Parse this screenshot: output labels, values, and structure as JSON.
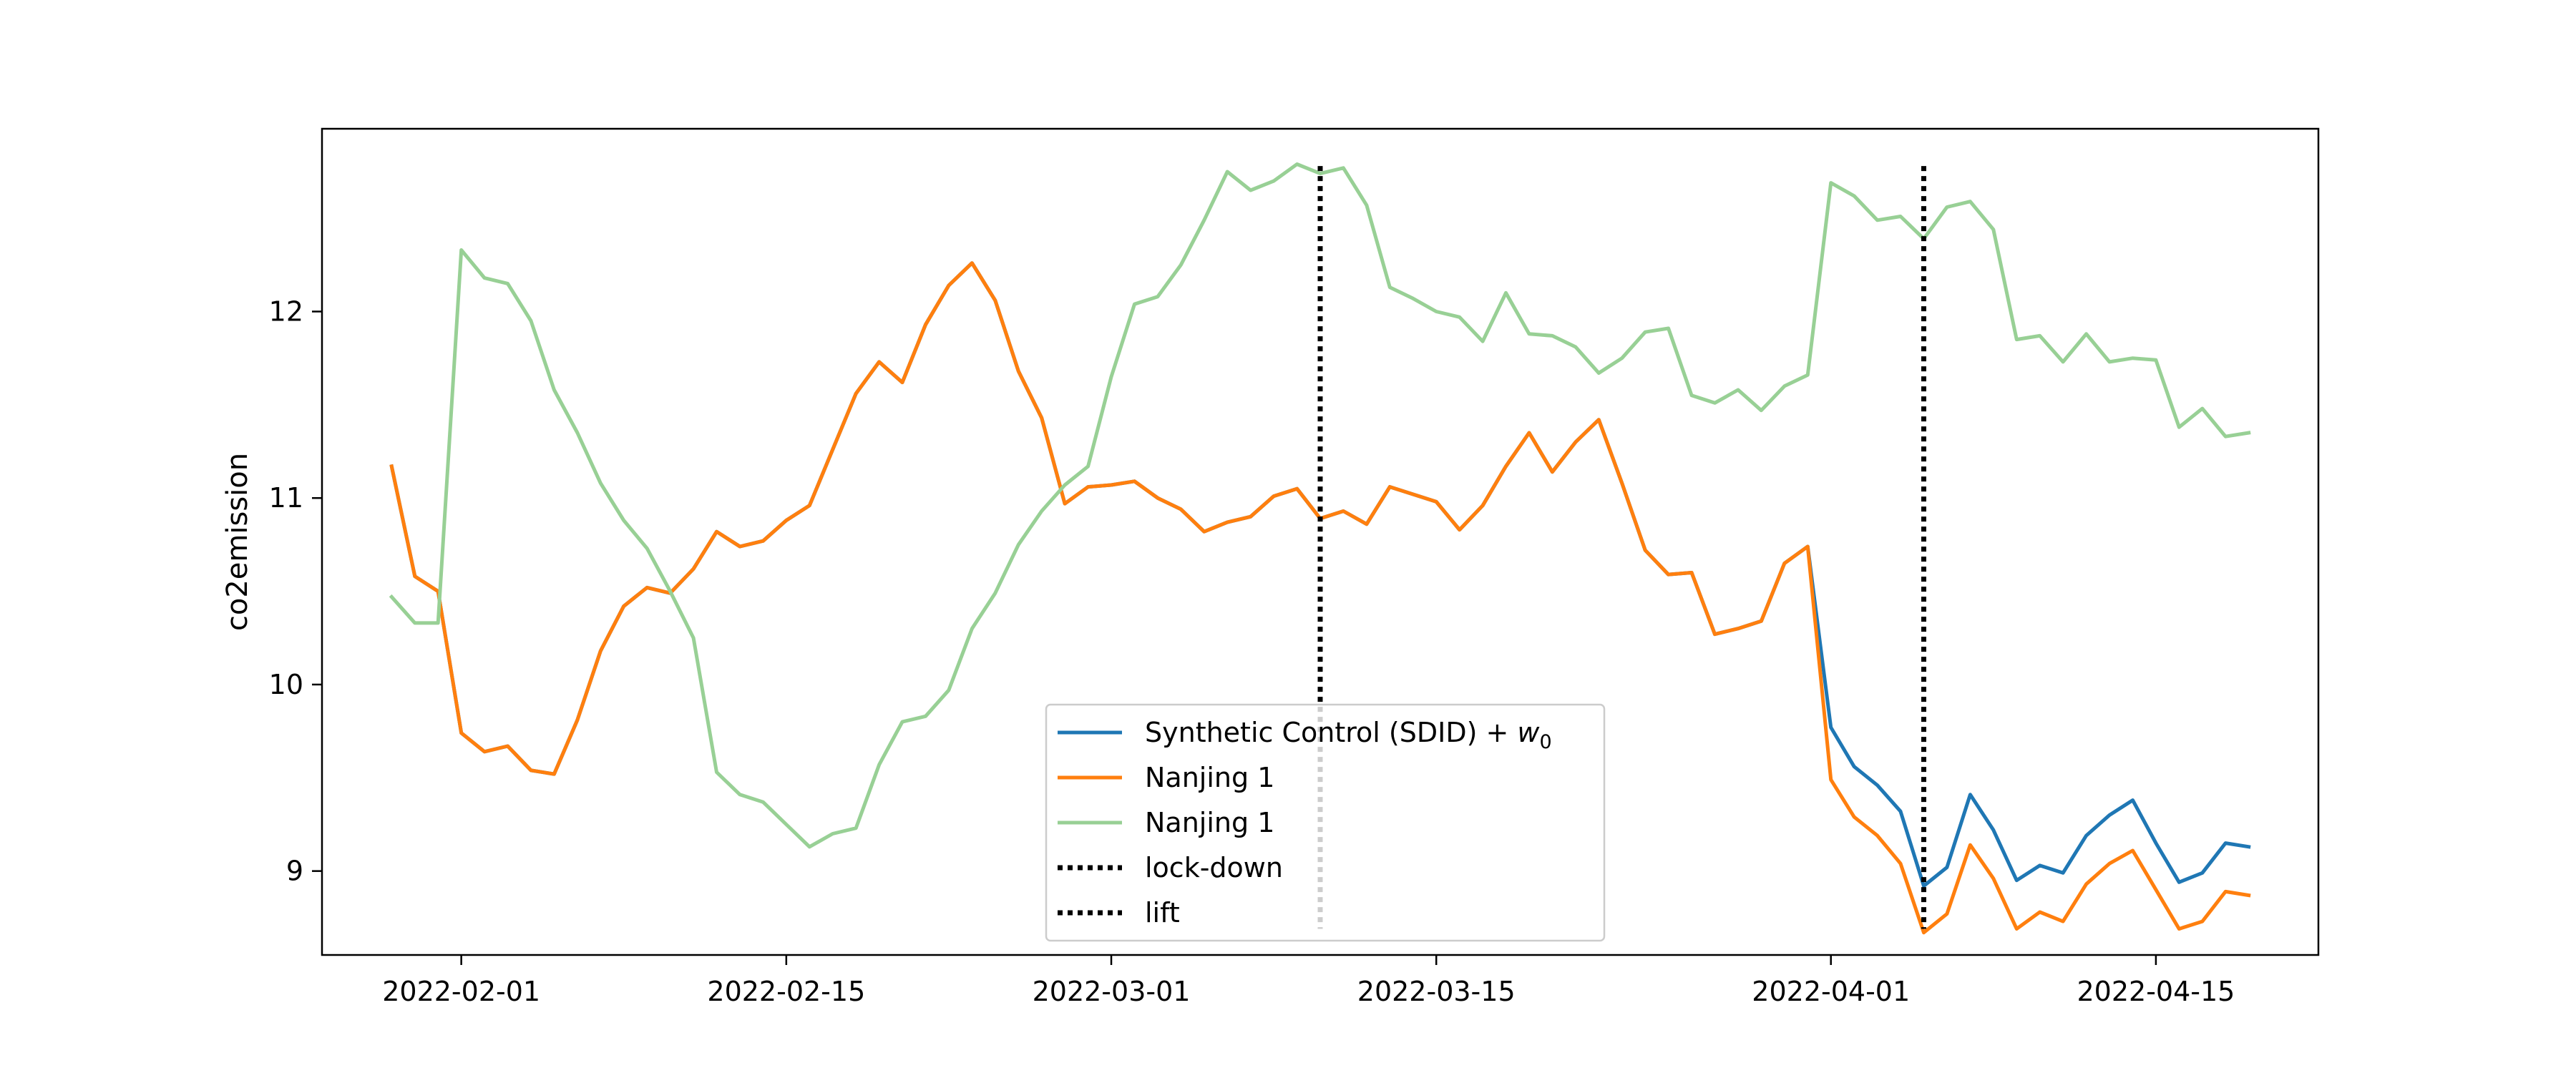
{
  "chart_data": {
    "type": "line",
    "xlabel": "",
    "ylabel": "co2emission",
    "x_start": "2022-01-29",
    "xlim": [
      "2022-01-26",
      "2022-04-22"
    ],
    "ylim": [
      8.55,
      12.98
    ],
    "x_ticks": [
      "2022-02-01",
      "2022-02-15",
      "2022-03-01",
      "2022-03-15",
      "2022-04-01",
      "2022-04-15"
    ],
    "y_ticks": [
      9,
      10,
      11,
      12
    ],
    "grid": false,
    "legend_position": "lower-center",
    "series": [
      {
        "name": "Synthetic Control (SDID) + w",
        "name_subscript": "0",
        "color": "#1f77b4",
        "values": [
          11.17,
          10.58,
          10.5,
          9.74,
          9.64,
          9.67,
          9.54,
          9.52,
          9.81,
          10.18,
          10.42,
          10.52,
          10.49,
          10.62,
          10.82,
          10.74,
          10.77,
          10.88,
          10.96,
          11.26,
          11.56,
          11.73,
          11.62,
          11.93,
          12.14,
          12.26,
          12.06,
          11.68,
          11.43,
          10.97,
          11.06,
          11.07,
          11.09,
          11.0,
          10.94,
          10.82,
          10.87,
          10.9,
          11.01,
          11.05,
          10.89,
          10.93,
          10.86,
          11.06,
          11.02,
          10.98,
          10.83,
          10.96,
          11.17,
          11.35,
          11.14,
          11.3,
          11.42,
          11.08,
          10.72,
          10.59,
          10.6,
          10.27,
          10.3,
          10.34,
          10.65,
          10.74,
          9.77,
          9.56,
          9.46,
          9.32,
          8.92,
          9.02,
          9.41,
          9.22,
          8.95,
          9.03,
          8.99,
          9.19,
          9.3,
          9.38,
          9.15,
          8.94,
          8.99,
          9.15,
          9.13
        ]
      },
      {
        "name": "Nanjing 1",
        "color": "#ff7f0e",
        "values": [
          11.17,
          10.58,
          10.5,
          9.74,
          9.64,
          9.67,
          9.54,
          9.52,
          9.81,
          10.18,
          10.42,
          10.52,
          10.49,
          10.62,
          10.82,
          10.74,
          10.77,
          10.88,
          10.96,
          11.26,
          11.56,
          11.73,
          11.62,
          11.93,
          12.14,
          12.26,
          12.06,
          11.68,
          11.43,
          10.97,
          11.06,
          11.07,
          11.09,
          11.0,
          10.94,
          10.82,
          10.87,
          10.9,
          11.01,
          11.05,
          10.89,
          10.93,
          10.86,
          11.06,
          11.02,
          10.98,
          10.83,
          10.96,
          11.17,
          11.35,
          11.14,
          11.3,
          11.42,
          11.08,
          10.72,
          10.59,
          10.6,
          10.27,
          10.3,
          10.34,
          10.65,
          10.74,
          9.49,
          9.29,
          9.19,
          9.04,
          8.67,
          8.77,
          9.14,
          8.96,
          8.69,
          8.78,
          8.73,
          8.93,
          9.04,
          9.11,
          8.9,
          8.69,
          8.73,
          8.89,
          8.87
        ]
      },
      {
        "name": "Nanjing 1",
        "color": "#98d095",
        "values": [
          10.47,
          10.33,
          10.33,
          12.33,
          12.18,
          12.15,
          11.95,
          11.58,
          11.35,
          11.08,
          10.88,
          10.73,
          10.5,
          10.25,
          9.53,
          9.41,
          9.37,
          9.25,
          9.13,
          9.2,
          9.23,
          9.57,
          9.8,
          9.83,
          9.97,
          10.3,
          10.49,
          10.75,
          10.93,
          11.07,
          11.17,
          11.65,
          12.04,
          12.08,
          12.25,
          12.49,
          12.75,
          12.65,
          12.7,
          12.79,
          12.74,
          12.77,
          12.57,
          12.13,
          12.07,
          12.0,
          11.97,
          11.84,
          12.1,
          11.88,
          11.87,
          11.81,
          11.67,
          11.75,
          11.89,
          11.91,
          11.55,
          11.51,
          11.58,
          11.47,
          11.6,
          11.66,
          12.69,
          12.62,
          12.49,
          12.51,
          12.39,
          12.56,
          12.59,
          12.44,
          11.85,
          11.87,
          11.73,
          11.88,
          11.73,
          11.75,
          11.74,
          11.38,
          11.48,
          11.33,
          11.35
        ]
      }
    ],
    "vlines": [
      {
        "name": "lock-down",
        "x": "2022-03-10",
        "color": "#000000",
        "style": "dotted"
      },
      {
        "name": "lift",
        "x": "2022-04-05",
        "color": "#000000",
        "style": "dotted"
      }
    ]
  }
}
